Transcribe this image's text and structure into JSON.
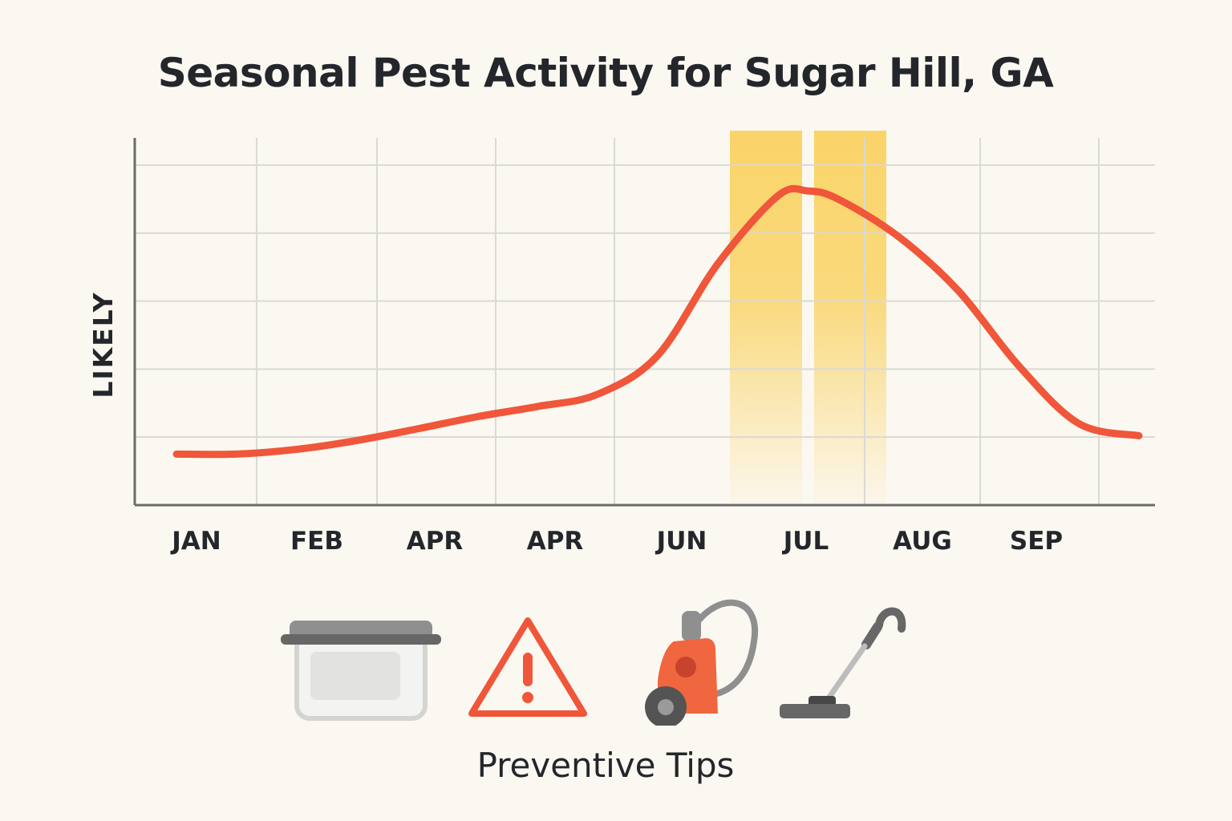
{
  "title": "Seasonal Pest Activity for Sugar Hill, GA",
  "chart_data": {
    "type": "line",
    "title": "Seasonal Pest Activity for Sugar Hill, GA",
    "xlabel": "",
    "ylabel": "LIKELY",
    "categories": [
      "JAN",
      "FEB",
      "APR",
      "APR",
      "JUN",
      "JUL",
      "AUG",
      "SEP"
    ],
    "ylim": [
      0,
      5.4
    ],
    "grid": true,
    "line_color": "#f0563a",
    "highlight_color": "#fad468",
    "highlights": [
      {
        "from": 4.6,
        "to": 5.2
      },
      {
        "from": 5.3,
        "to": 5.9
      }
    ],
    "series": [
      {
        "points": [
          [
            0,
            0.75
          ],
          [
            0.5,
            0.75
          ],
          [
            1,
            0.82
          ],
          [
            1.5,
            0.95
          ],
          [
            2,
            1.12
          ],
          [
            2.5,
            1.3
          ],
          [
            3,
            1.45
          ],
          [
            3.5,
            1.63
          ],
          [
            4,
            2.2
          ],
          [
            4.5,
            3.55
          ],
          [
            5,
            4.55
          ],
          [
            5.25,
            4.62
          ],
          [
            5.5,
            4.5
          ],
          [
            6,
            3.95
          ],
          [
            6.5,
            3.15
          ],
          [
            7,
            2.05
          ],
          [
            7.5,
            1.2
          ],
          [
            8,
            1.02
          ]
        ]
      }
    ]
  },
  "tips": {
    "caption": "Preventive Tips",
    "icons": [
      "food-container-icon",
      "warning-icon",
      "canister-vacuum-icon",
      "stick-vacuum-icon"
    ]
  }
}
